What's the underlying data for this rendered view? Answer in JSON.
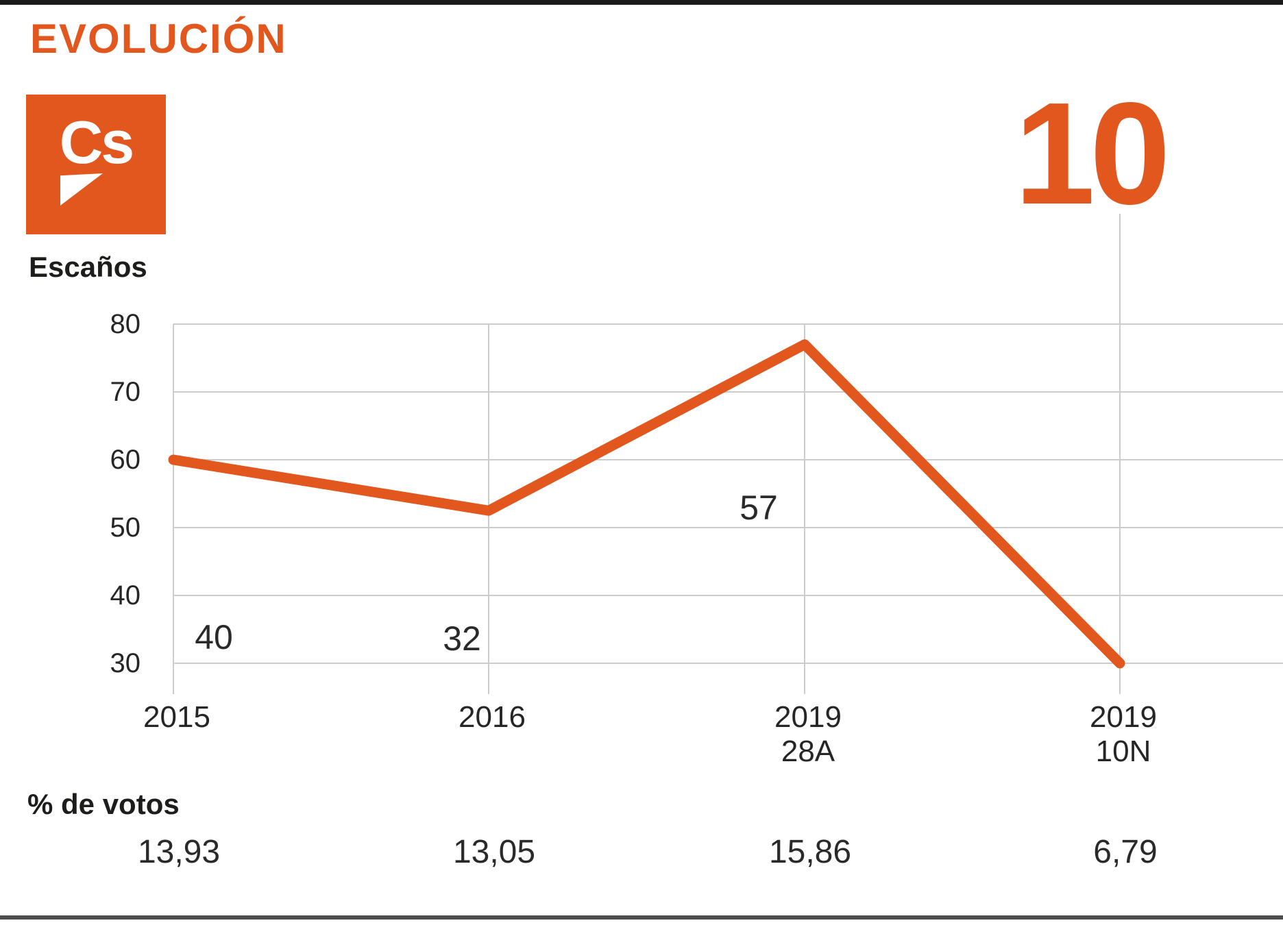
{
  "header": {
    "title": "EVOLUCIÓN",
    "logo_text": "Cs"
  },
  "colors": {
    "accent": "#e2571e",
    "grid": "#cccccc",
    "text_dark": "#1d1d1b",
    "top_bar": "#1a1a1a",
    "bottom_bar": "#4d4d4d"
  },
  "chart_data": {
    "type": "line",
    "ylabel": "Escaños",
    "categories": [
      [
        "2015"
      ],
      [
        "2016"
      ],
      [
        "2019",
        "28A"
      ],
      [
        "2019",
        "10N"
      ]
    ],
    "values": [
      40,
      32,
      57,
      10
    ],
    "value_labels": [
      "40",
      "32",
      "57",
      "10"
    ],
    "plotted_y_values": [
      60,
      52.5,
      77,
      30
    ],
    "ylim": [
      30,
      80
    ],
    "yticks": [
      80,
      70,
      60,
      50,
      40,
      30
    ],
    "grid": true,
    "legend": "none",
    "line_color": "#e2571e",
    "votes_label": "% de votos",
    "votes_values": [
      "13,93",
      "13,05",
      "15,86",
      "6,79"
    ]
  }
}
